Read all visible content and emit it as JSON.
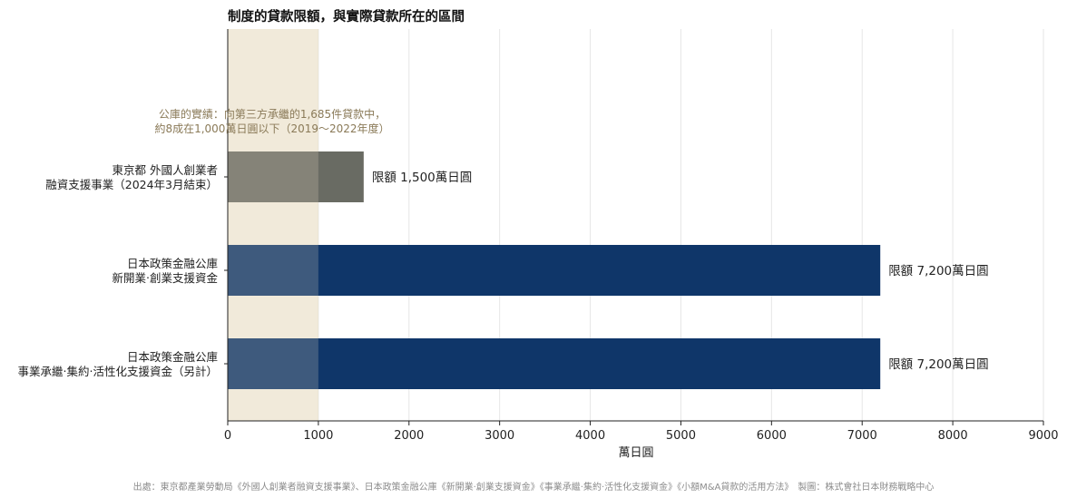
{
  "chart_data": {
    "type": "bar",
    "orientation": "horizontal",
    "title": "制度的貸款限額，與實際貸款所在的區間",
    "xlabel": "萬日圓",
    "xlim": [
      0,
      9000
    ],
    "xticks": [
      0,
      1000,
      2000,
      3000,
      4000,
      5000,
      6000,
      7000,
      8000,
      9000
    ],
    "grid": "vertical",
    "categories": [
      [
        "東京都 外國人創業者",
        "融資支援事業（2024年3月結束）"
      ],
      [
        "日本政策金融公庫",
        "新開業‧創業支援資金"
      ],
      [
        "日本政策金融公庫",
        "事業承繼‧集約‧活性化支援資金（另計）"
      ]
    ],
    "values": [
      1500,
      7200,
      7200
    ],
    "data_labels": [
      "限額 1,500萬日圓",
      "限額 7,200萬日圓",
      "限額 7,200萬日圓"
    ],
    "bar_colors": [
      "#696b63",
      "#0f3669",
      "#0f3669"
    ],
    "highlight_band": {
      "from": 0,
      "to": 1000,
      "color": "#e8dcc2",
      "annotation": [
        "公庫的實績：向第三方承繼的1,685件貸款中，",
        "約8成在1,000萬日圓以下（2019～2022年度）"
      ]
    }
  },
  "footer": {
    "source": "出處：東京都產業勞動局《外國人創業者融資支援事業》、日本政策金融公庫《新開業‧創業支援資金》《事業承繼‧集約‧活性化支援資金》《小額M&A貸款的活用方法》　製圖：株式會社日本財務戰略中心"
  }
}
